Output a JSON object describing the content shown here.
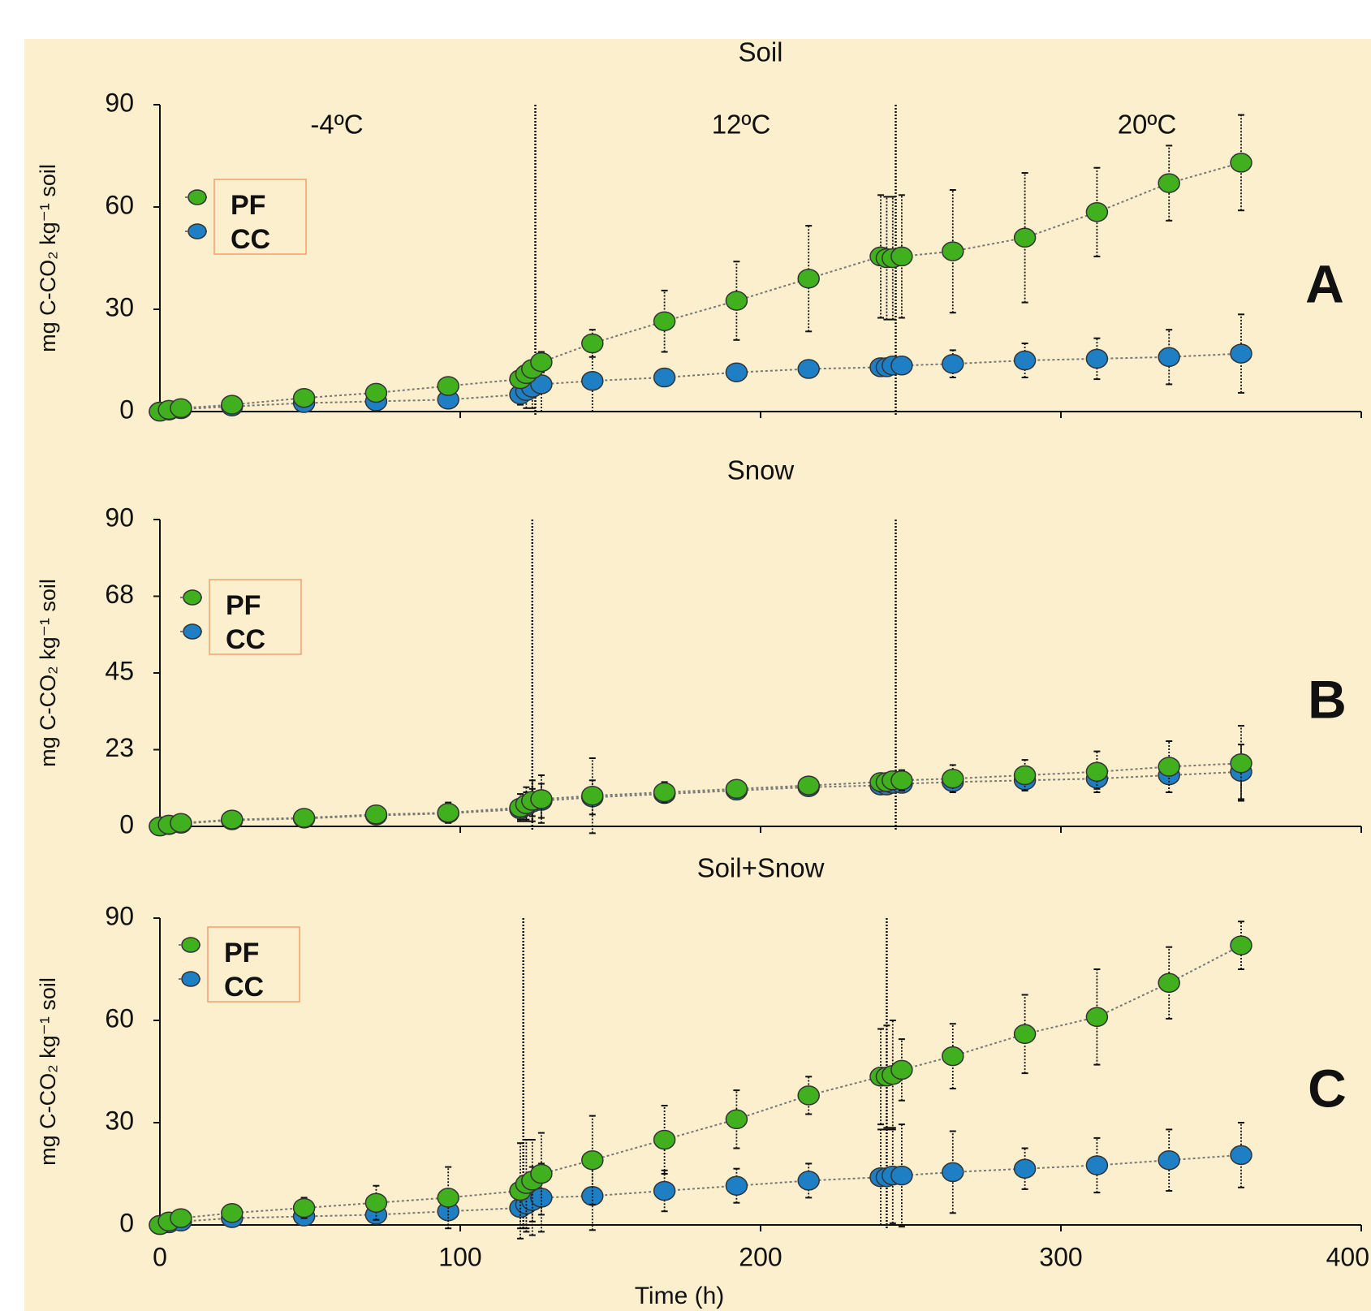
{
  "chart_data": [
    {
      "type": "line",
      "title": "Soil",
      "ylabel": "mg C-CO₂ kg⁻¹ soil",
      "panel_label": "A",
      "annotations": [
        "-4ºC",
        "12ºC",
        "20ºC"
      ],
      "x": [
        0,
        3,
        7,
        24,
        48,
        72,
        96,
        120,
        122,
        124,
        127,
        144,
        168,
        192,
        216,
        240,
        242,
        244,
        247,
        264,
        288,
        312,
        336,
        360
      ],
      "xlim": [
        0,
        400
      ],
      "xticks": [
        0,
        100,
        200,
        300,
        400
      ],
      "show_xtick_labels": false,
      "ylim": [
        0,
        90
      ],
      "yticks": [
        0,
        30,
        60,
        90
      ],
      "vlines": [
        125,
        245
      ],
      "series": [
        {
          "name": "PF",
          "color": "#41b01f",
          "values": [
            0,
            0.5,
            1,
            2,
            4,
            5.5,
            7.5,
            9.5,
            11,
            12.5,
            14.5,
            20,
            26.5,
            32.5,
            39,
            45.5,
            45,
            45,
            45.5,
            47,
            51,
            58.5,
            67,
            73
          ],
          "errors": [
            0.3,
            0.3,
            0.5,
            1,
            1,
            1,
            1,
            1.5,
            2,
            2.5,
            3,
            4,
            9,
            11.5,
            15.5,
            18,
            18,
            18,
            18,
            18,
            19,
            13,
            11,
            14
          ]
        },
        {
          "name": "CC",
          "color": "#1f7fc4",
          "values": [
            0,
            0.3,
            0.7,
            1.5,
            2.5,
            3,
            3.5,
            5,
            6,
            7,
            8,
            9,
            10,
            11.5,
            12.5,
            13,
            13,
            13.5,
            13.5,
            14,
            15,
            15.5,
            16,
            17
          ],
          "errors": [
            0.3,
            0.3,
            0.3,
            0.5,
            0.5,
            0.5,
            0.5,
            3,
            5,
            6,
            8,
            9,
            1,
            1,
            1.5,
            1.5,
            1.5,
            2,
            2,
            4,
            5,
            6,
            8,
            11.5
          ]
        }
      ]
    },
    {
      "type": "line",
      "title": "Snow",
      "ylabel": "mg C-CO₂ kg⁻¹ soil",
      "panel_label": "B",
      "x": [
        0,
        3,
        7,
        24,
        48,
        72,
        96,
        120,
        122,
        124,
        127,
        144,
        168,
        192,
        216,
        240,
        242,
        244,
        247,
        264,
        288,
        312,
        336,
        360
      ],
      "xlim": [
        0,
        400
      ],
      "xticks": [
        0,
        100,
        200,
        300,
        400
      ],
      "show_xtick_labels": false,
      "ylim": [
        0,
        90
      ],
      "yticks": [
        0,
        {
          "value": 22.5,
          "label": "23"
        },
        45,
        {
          "value": 67.5,
          "label": "68"
        },
        90
      ],
      "vlines": [
        124,
        245
      ],
      "series": [
        {
          "name": "PF",
          "color": "#41b01f",
          "values": [
            0,
            0.5,
            1,
            2,
            2.5,
            3.5,
            4,
            5.5,
            6.5,
            7.5,
            8,
            9,
            10,
            11,
            12,
            13,
            13,
            13.5,
            13.5,
            14,
            15,
            16,
            17.5,
            18.5
          ],
          "errors": [
            0.3,
            0.3,
            0.3,
            0.5,
            1.5,
            2,
            3,
            4,
            5,
            6,
            7,
            11,
            3,
            2,
            2,
            1.5,
            1.5,
            2,
            3,
            4,
            4.5,
            6,
            7.5,
            11
          ]
        },
        {
          "name": "CC",
          "color": "#1f7fc4",
          "values": [
            0,
            0.4,
            0.8,
            1.8,
            2.3,
            3.2,
            3.8,
            5,
            6,
            7,
            7.5,
            8.5,
            9.5,
            10.5,
            11.5,
            12,
            12,
            12.5,
            12.5,
            13,
            13.5,
            14,
            15,
            16
          ],
          "errors": [
            0.3,
            0.3,
            0.3,
            0.5,
            1,
            1,
            1,
            3,
            4,
            4,
            5,
            5,
            2,
            2,
            2,
            1.5,
            1.5,
            1.5,
            2,
            2,
            3,
            3,
            5,
            8
          ]
        }
      ]
    },
    {
      "type": "line",
      "title": "Soil+Snow",
      "ylabel": "mg C-CO₂ kg⁻¹ soil",
      "panel_label": "C",
      "xlabel": "Time  (h)",
      "x": [
        0,
        3,
        7,
        24,
        48,
        72,
        96,
        120,
        122,
        124,
        127,
        144,
        168,
        192,
        216,
        240,
        242,
        244,
        247,
        264,
        288,
        312,
        336,
        360
      ],
      "xlim": [
        0,
        400
      ],
      "xticks": [
        0,
        100,
        200,
        300,
        400
      ],
      "show_xtick_labels": true,
      "ylim": [
        0,
        90
      ],
      "yticks": [
        0,
        30,
        60,
        90
      ],
      "vlines": [
        121,
        242
      ],
      "series": [
        {
          "name": "PF",
          "color": "#41b01f",
          "values": [
            0,
            1,
            2,
            3.5,
            5,
            6.5,
            8,
            10,
            12,
            13,
            15,
            19,
            25,
            31,
            38,
            43.5,
            43.5,
            44,
            45.5,
            49.5,
            56,
            61,
            71,
            82
          ],
          "errors": [
            0.5,
            0.5,
            1,
            1.5,
            3,
            5,
            9,
            14,
            13,
            12,
            12,
            13,
            10,
            8.5,
            5.5,
            14,
            15,
            16,
            9,
            9.5,
            11.5,
            14,
            10.5,
            7
          ]
        },
        {
          "name": "CC",
          "color": "#1f7fc4",
          "values": [
            0,
            0.5,
            1,
            2,
            2.5,
            3,
            4,
            5,
            6,
            7,
            8,
            8.5,
            10,
            11.5,
            13,
            14,
            14,
            14.5,
            14.5,
            15.5,
            16.5,
            17.5,
            19,
            20.5
          ],
          "errors": [
            0.5,
            0.5,
            0.5,
            1,
            1,
            1,
            1,
            6,
            8,
            10,
            10,
            10,
            6,
            5,
            5,
            14,
            14,
            14,
            15,
            12,
            6,
            8,
            9,
            9.5
          ]
        }
      ]
    }
  ]
}
